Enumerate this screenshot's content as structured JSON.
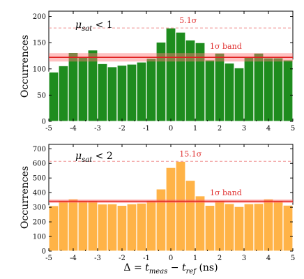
{
  "chart_data": [
    {
      "type": "bar",
      "panel_label": "μsat < 1",
      "ylabel": "Occurrences",
      "xlim": [
        -5,
        5
      ],
      "ylim": [
        0,
        210
      ],
      "xticks": [
        -5,
        -4,
        -3,
        -2,
        -1,
        0,
        1,
        2,
        3,
        4,
        5
      ],
      "yticks": [
        0,
        50,
        100,
        150,
        200
      ],
      "bin_width": 0.4,
      "x": [
        -4.8,
        -4.4,
        -4.0,
        -3.6,
        -3.2,
        -2.8,
        -2.4,
        -2.0,
        -1.6,
        -1.2,
        -0.8,
        -0.4,
        0.0,
        0.4,
        0.8,
        1.2,
        1.6,
        2.0,
        2.4,
        2.8,
        3.2,
        3.6,
        4.0,
        4.4,
        4.8
      ],
      "values": [
        94,
        106,
        131,
        122,
        136,
        110,
        104,
        107,
        109,
        113,
        120,
        151,
        178,
        170,
        155,
        150,
        117,
        130,
        111,
        102,
        122,
        130,
        121,
        121,
        117
      ],
      "color": "#1e8c1e",
      "mean_line": 122,
      "band": [
        114,
        130
      ],
      "dashed_line": 178,
      "annotations": {
        "dashed_label": "5.1σ",
        "band_label": "1σ band"
      }
    },
    {
      "type": "bar",
      "panel_label": "μsat < 2",
      "xlabel": "Δ = tmeas − tref (ns)",
      "ylabel": "Occurrences",
      "xlim": [
        -5,
        5
      ],
      "ylim": [
        0,
        730
      ],
      "xticks": [
        -5,
        -4,
        -3,
        -2,
        -1,
        0,
        1,
        2,
        3,
        4,
        5
      ],
      "yticks": [
        0,
        100,
        200,
        300,
        400,
        500,
        600,
        700
      ],
      "bin_width": 0.4,
      "x": [
        -4.8,
        -4.4,
        -4.0,
        -3.6,
        -3.2,
        -2.8,
        -2.4,
        -2.0,
        -1.6,
        -1.2,
        -0.8,
        -0.4,
        0.0,
        0.4,
        0.8,
        1.2,
        1.6,
        2.0,
        2.4,
        2.8,
        3.2,
        3.6,
        4.0,
        4.4,
        4.8
      ],
      "values": [
        311,
        343,
        357,
        345,
        344,
        322,
        323,
        313,
        323,
        328,
        347,
        425,
        572,
        614,
        484,
        378,
        313,
        345,
        325,
        305,
        324,
        326,
        357,
        343,
        314
      ],
      "color": "#ffb347",
      "mean_line": 341,
      "band": [
        329,
        353
      ],
      "dashed_line": 614,
      "annotations": {
        "dashed_label": "15.1σ",
        "band_label": "1σ band"
      }
    }
  ]
}
